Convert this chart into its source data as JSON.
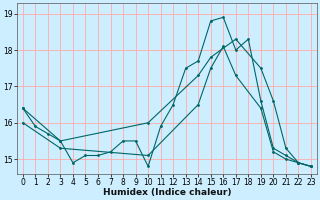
{
  "xlabel": "Humidex (Indice chaleur)",
  "bg_color": "#cceeff",
  "grid_color": "#ffaaaa",
  "line_color": "#006666",
  "xlim": [
    -0.5,
    23.5
  ],
  "ylim": [
    14.6,
    19.3
  ],
  "yticks": [
    15,
    16,
    17,
    18,
    19
  ],
  "xticks": [
    0,
    1,
    2,
    3,
    4,
    5,
    6,
    7,
    8,
    9,
    10,
    11,
    12,
    13,
    14,
    15,
    16,
    17,
    18,
    19,
    20,
    21,
    22,
    23
  ],
  "series": [
    {
      "x": [
        0,
        1,
        2,
        3,
        4,
        5,
        6,
        7,
        8,
        9,
        10,
        11,
        12,
        13,
        14,
        15,
        16,
        17,
        18,
        19,
        20,
        21,
        22,
        23
      ],
      "y": [
        16.4,
        15.9,
        15.7,
        15.5,
        14.9,
        15.1,
        15.1,
        15.2,
        15.5,
        15.5,
        14.8,
        15.9,
        16.5,
        17.5,
        17.7,
        18.8,
        18.9,
        18.0,
        18.3,
        16.6,
        15.3,
        15.1,
        14.9,
        14.8
      ]
    },
    {
      "x": [
        0,
        3,
        10,
        14,
        15,
        17,
        19,
        20,
        21,
        22,
        23
      ],
      "y": [
        16.4,
        15.5,
        16.0,
        17.3,
        17.8,
        18.3,
        17.5,
        16.6,
        15.3,
        14.9,
        14.8
      ]
    },
    {
      "x": [
        0,
        3,
        10,
        14,
        15,
        16,
        17,
        19,
        20,
        21,
        22,
        23
      ],
      "y": [
        16.0,
        15.3,
        15.1,
        16.5,
        17.5,
        18.1,
        17.3,
        16.4,
        15.2,
        15.0,
        14.9,
        14.8
      ]
    }
  ]
}
